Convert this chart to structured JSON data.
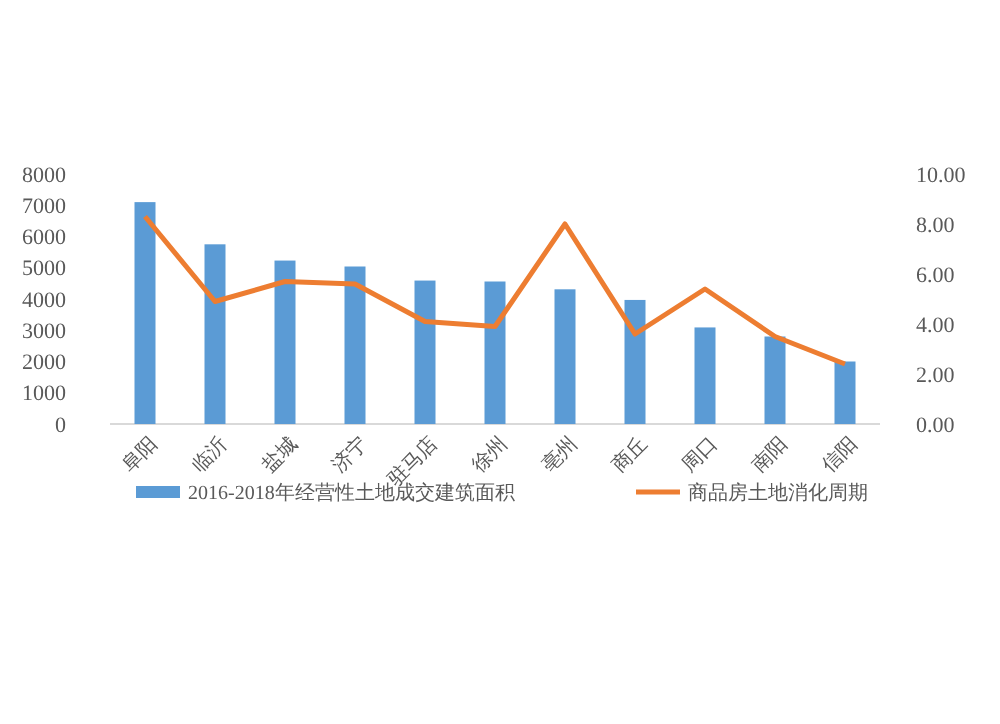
{
  "chart_data": {
    "type": "bar",
    "categories": [
      "阜阳",
      "临沂",
      "盐城",
      "济宁",
      "驻马店",
      "徐州",
      "亳州",
      "商丘",
      "周口",
      "南阳",
      "信阳"
    ],
    "series": [
      {
        "name": "2016-2018年经营性土地成交建筑面积",
        "color": "#5b9bd5",
        "values": [
          7100,
          5750,
          5230,
          5040,
          4590,
          4560,
          4310,
          3970,
          3090,
          2800,
          2000
        ]
      },
      {
        "name": "商品房土地消化周期",
        "type": "line",
        "axis": "y2",
        "color": "#ed7d31",
        "values": [
          8.3,
          4.9,
          5.7,
          5.6,
          4.1,
          3.9,
          8.0,
          3.6,
          5.4,
          3.5,
          2.4
        ]
      }
    ],
    "ylim": [
      0,
      8000
    ],
    "yticks": [
      0,
      1000,
      2000,
      3000,
      4000,
      5000,
      6000,
      7000,
      8000
    ],
    "y2lim": [
      0,
      10
    ],
    "y2ticks": [
      {
        "value": 0,
        "label": "0.00"
      },
      {
        "value": 2,
        "label": "2.00"
      },
      {
        "value": 4,
        "label": "4.00"
      },
      {
        "value": 6,
        "label": "6.00"
      },
      {
        "value": 8,
        "label": "8.00"
      },
      {
        "value": 10,
        "label": "10.00"
      }
    ],
    "legend": "bottom",
    "marker": "none"
  }
}
